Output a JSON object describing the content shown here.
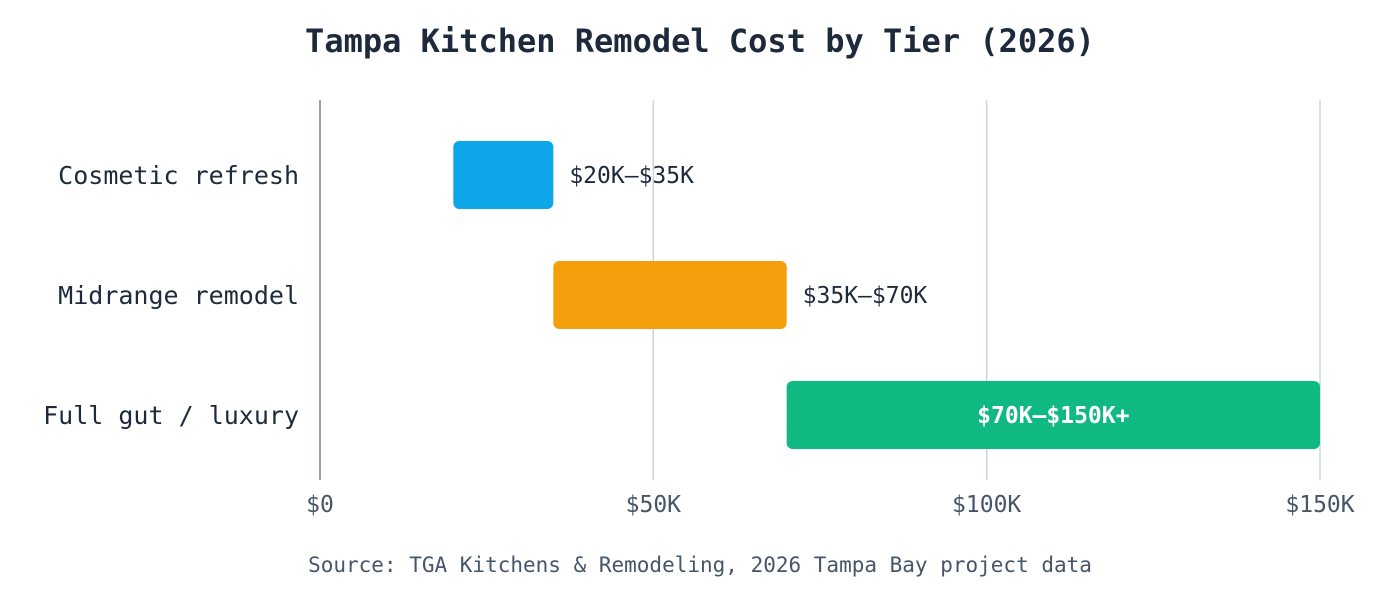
{
  "chart_data": {
    "type": "bar",
    "orientation": "horizontal",
    "subtype": "floating-range",
    "title": "Tampa Kitchen Remodel Cost by Tier (2026)",
    "xlabel": "",
    "ylabel": "",
    "xlim": [
      0,
      150000
    ],
    "x_ticks": [
      {
        "value": 0,
        "label": "$0"
      },
      {
        "value": 50000,
        "label": "$50K"
      },
      {
        "value": 100000,
        "label": "$100K"
      },
      {
        "value": 150000,
        "label": "$150K"
      }
    ],
    "grid": true,
    "legend": "none",
    "categories": [
      "Cosmetic refresh",
      "Midrange remodel",
      "Full gut / luxury"
    ],
    "ranges": [
      {
        "category": "Cosmetic refresh",
        "low": 20000,
        "high": 35000,
        "label": "$20K–$35K",
        "color": "#0ea5e9",
        "label_position": "outside"
      },
      {
        "category": "Midrange remodel",
        "low": 35000,
        "high": 70000,
        "label": "$35K–$70K",
        "color": "#f59e0b",
        "label_position": "outside"
      },
      {
        "category": "Full gut / luxury",
        "low": 70000,
        "high": 150000,
        "label": "$70K–$150K+",
        "color": "#10b981",
        "label_position": "inside"
      }
    ],
    "source": "Source: TGA Kitchens & Remodeling, 2026 Tampa Bay project data"
  },
  "colors": {
    "text": "#1e293b",
    "muted": "#475569",
    "grid": "#cbd5e1",
    "axis": "#94a3b8"
  }
}
